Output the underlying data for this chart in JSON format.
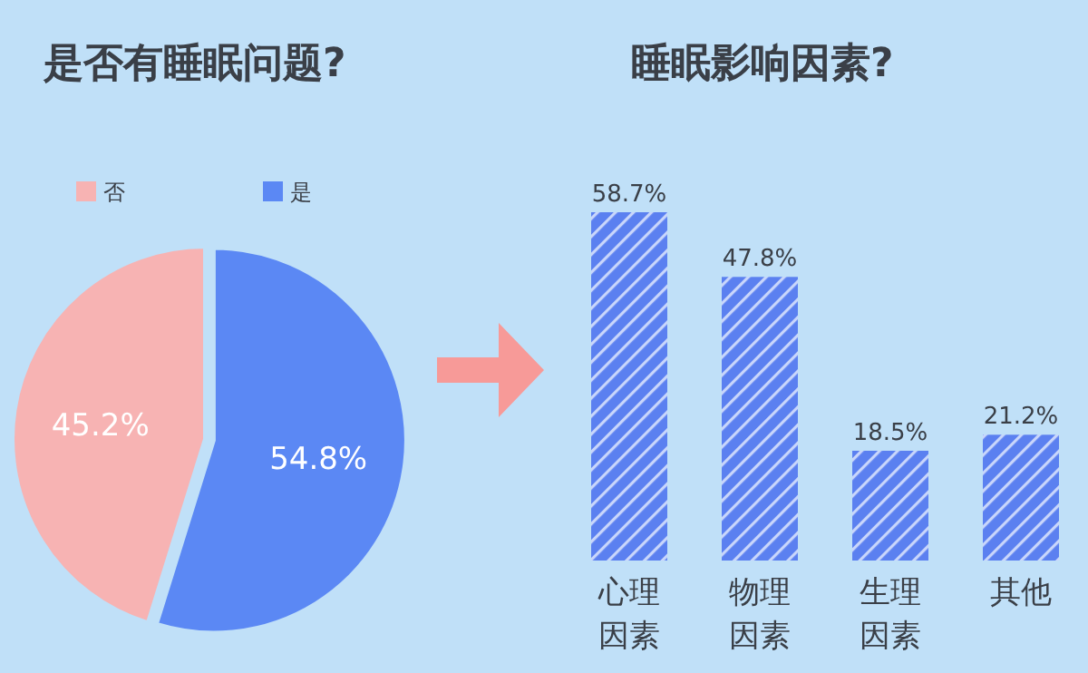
{
  "chart_data": [
    {
      "type": "pie",
      "title": "是否有睡眠问题?",
      "categories": [
        "否",
        "是"
      ],
      "values": [
        45.2,
        54.8
      ],
      "colors": [
        "#f7b3b3",
        "#5b88f4"
      ],
      "value_labels": [
        "45.2%",
        "54.8%"
      ],
      "legend": "top left"
    },
    {
      "type": "bar",
      "title": "睡眠影响因素?",
      "categories": [
        "心理因素",
        "物理因素",
        "生理因素",
        "其他"
      ],
      "values": [
        58.7,
        47.8,
        18.5,
        21.2
      ],
      "color": "#5b80f0",
      "value_labels": [
        "58.7%",
        "47.8%",
        "18.5%",
        "21.2%"
      ]
    }
  ]
}
